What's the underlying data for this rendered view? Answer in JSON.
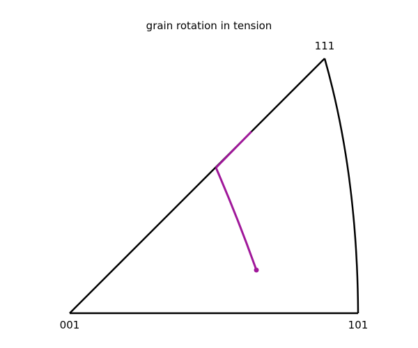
{
  "title": "grain rotation in tension",
  "poles": {
    "origin": "001",
    "corner_101": "101",
    "corner_111": "111"
  },
  "colors": {
    "outline": "#000000",
    "path": "#a0189a",
    "background": "#ffffff"
  },
  "rotation_path": {
    "description_points": "direction path from start marker to boundary then along 001-111 edge",
    "start_marker": "dot"
  }
}
